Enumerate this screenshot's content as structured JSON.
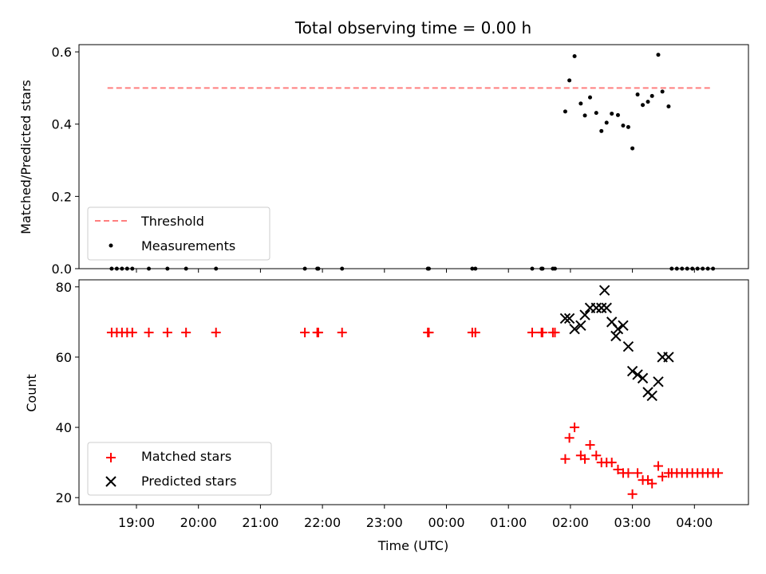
{
  "figure": {
    "title": "Total observing time = 0.00 h",
    "xlabel": "Time (UTC)",
    "xticks": [
      "19:00",
      "20:00",
      "21:00",
      "22:00",
      "23:00",
      "00:00",
      "01:00",
      "02:00",
      "03:00",
      "04:00"
    ]
  },
  "chart_data": [
    {
      "type": "scatter",
      "title": "Total observing time = 0.00 h",
      "xlabel": "",
      "ylabel": "Matched/Predicted stars",
      "ylim": [
        0,
        0.62
      ],
      "yticks": [
        "0.0",
        "0.2",
        "0.4",
        "0.6"
      ],
      "grid": false,
      "legend_position": "lower-left",
      "threshold": {
        "name": "Threshold",
        "value": 0.5,
        "color": "#ff7f7f",
        "x_range": [
          "18:32",
          "04:18"
        ]
      },
      "series": [
        {
          "name": "Measurements",
          "color": "#000000",
          "x": [
            "18:36",
            "18:41",
            "18:46",
            "18:51",
            "18:56",
            "19:12",
            "19:30",
            "19:48",
            "20:17",
            "21:43",
            "21:55",
            "21:56",
            "22:19",
            "23:42",
            "23:43",
            "00:25",
            "00:28",
            "01:23",
            "01:32",
            "01:33",
            "01:43",
            "01:45",
            "01:55",
            "01:59",
            "02:04",
            "02:10",
            "02:14",
            "02:19",
            "02:25",
            "02:30",
            "02:35",
            "02:40",
            "02:46",
            "02:51",
            "02:56",
            "03:00",
            "03:05",
            "03:10",
            "03:15",
            "03:19",
            "03:25",
            "03:29",
            "03:35",
            "03:38",
            "03:43",
            "03:48",
            "03:53",
            "03:58",
            "04:03",
            "04:08",
            "04:13",
            "04:18"
          ],
          "y": [
            0,
            0,
            0,
            0,
            0,
            0,
            0,
            0,
            0,
            0,
            0,
            0,
            0,
            0,
            0,
            0,
            0,
            0,
            0,
            0,
            0,
            0,
            0.435,
            0.521,
            0.588,
            0.457,
            0.424,
            0.474,
            0.431,
            0.381,
            0.404,
            0.429,
            0.425,
            0.396,
            0.392,
            0.333,
            0.482,
            0.453,
            0.462,
            0.478,
            0.592,
            0.49,
            0.449,
            0,
            0,
            0,
            0,
            0,
            0,
            0,
            0,
            0
          ]
        }
      ]
    },
    {
      "type": "scatter",
      "xlabel": "Time (UTC)",
      "ylabel": "Count",
      "ylim": [
        18,
        82
      ],
      "yticks": [
        "20",
        "40",
        "60",
        "80"
      ],
      "grid": false,
      "legend_position": "lower-left",
      "series": [
        {
          "name": "Matched stars",
          "marker": "plus",
          "color": "#ff0000",
          "x": [
            "18:36",
            "18:41",
            "18:46",
            "18:51",
            "18:56",
            "19:12",
            "19:30",
            "19:48",
            "20:17",
            "21:43",
            "21:55",
            "21:56",
            "22:19",
            "23:42",
            "23:43",
            "00:25",
            "00:28",
            "01:23",
            "01:32",
            "01:33",
            "01:43",
            "01:45",
            "01:55",
            "01:59",
            "02:04",
            "02:10",
            "02:14",
            "02:19",
            "02:25",
            "02:30",
            "02:35",
            "02:40",
            "02:46",
            "02:51",
            "02:56",
            "03:00",
            "03:05",
            "03:10",
            "03:15",
            "03:19",
            "03:25",
            "03:29",
            "03:35",
            "03:38",
            "03:43",
            "03:48",
            "03:53",
            "03:58",
            "04:03",
            "04:08",
            "04:13",
            "04:18",
            "04:23"
          ],
          "y": [
            67,
            67,
            67,
            67,
            67,
            67,
            67,
            67,
            67,
            67,
            67,
            67,
            67,
            67,
            67,
            67,
            67,
            67,
            67,
            67,
            67,
            67,
            31,
            37,
            40,
            32,
            31,
            35,
            32,
            30,
            30,
            30,
            28,
            27,
            27,
            21,
            27,
            25,
            25,
            24,
            29,
            26,
            27,
            27,
            27,
            27,
            27,
            27,
            27,
            27,
            27,
            27,
            27
          ]
        },
        {
          "name": "Predicted stars",
          "marker": "x",
          "color": "#000000",
          "x": [
            "01:55",
            "01:59",
            "02:04",
            "02:10",
            "02:14",
            "02:19",
            "02:25",
            "02:30",
            "02:33",
            "02:35",
            "02:40",
            "02:44",
            "02:46",
            "02:51",
            "02:56",
            "03:00",
            "03:05",
            "03:10",
            "03:15",
            "03:19",
            "03:25",
            "03:29",
            "03:35"
          ],
          "y": [
            71,
            71,
            68,
            69,
            72,
            74,
            74,
            74,
            79,
            74,
            70,
            66,
            68,
            69,
            63,
            56,
            55,
            54,
            50,
            49,
            53,
            60,
            60
          ]
        }
      ]
    }
  ],
  "legend_top": {
    "threshold_label": "Threshold",
    "measurements_label": "Measurements"
  },
  "legend_bottom": {
    "matched_label": "Matched stars",
    "predicted_label": "Predicted stars"
  }
}
